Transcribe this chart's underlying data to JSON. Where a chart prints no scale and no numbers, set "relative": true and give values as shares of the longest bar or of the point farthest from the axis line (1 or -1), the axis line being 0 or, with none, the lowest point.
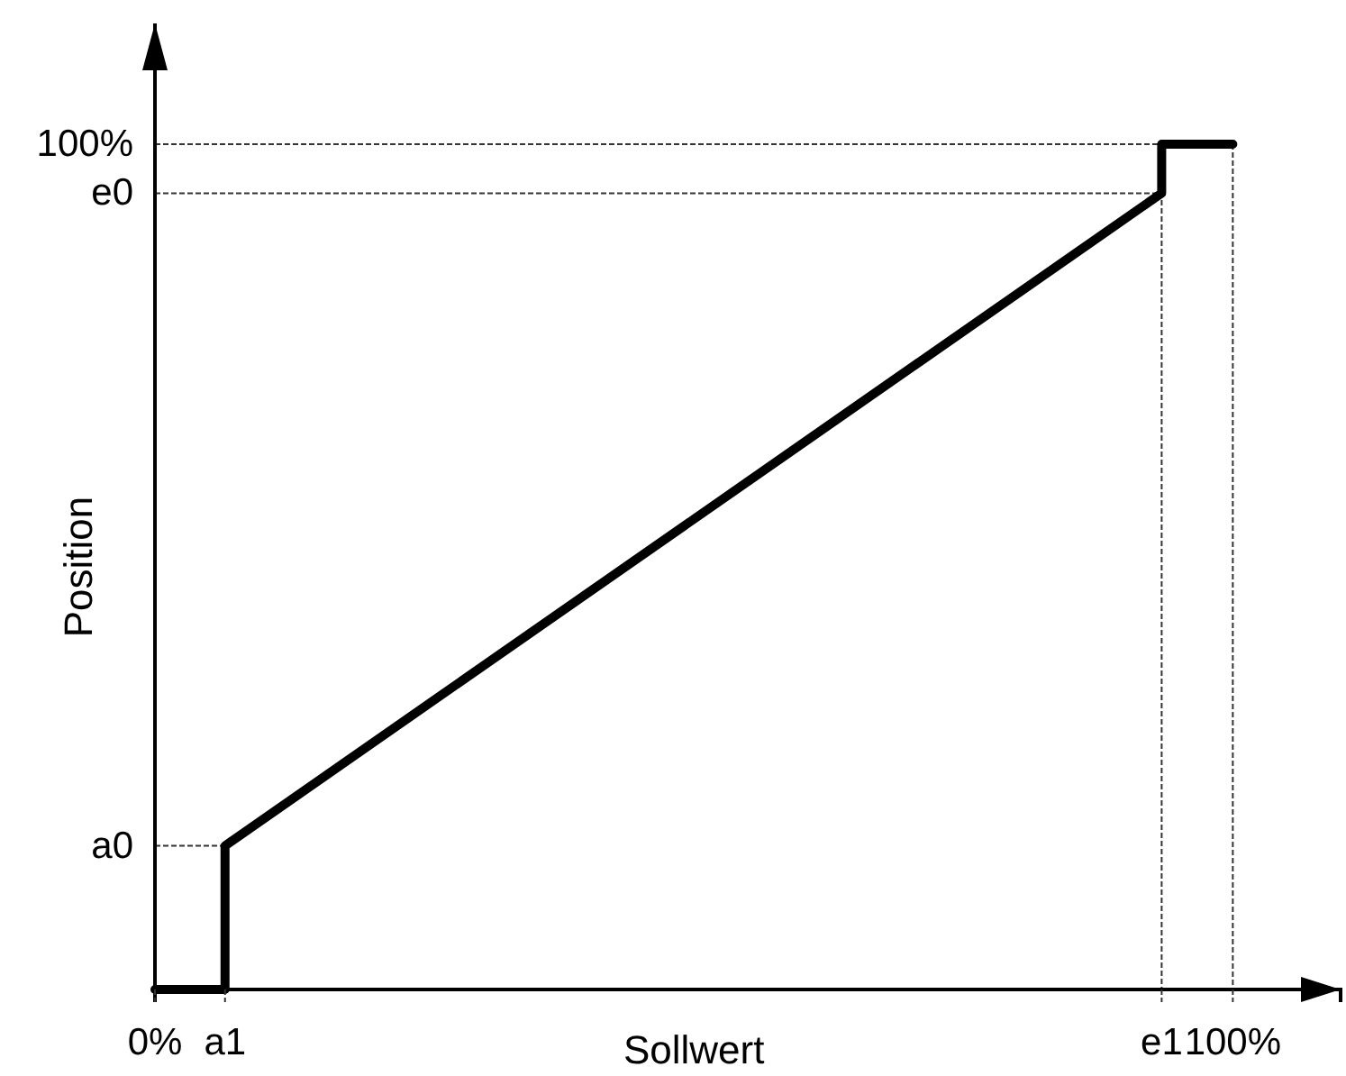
{
  "chart_data": {
    "type": "line",
    "relative": true,
    "xlabel": "Sollwert",
    "ylabel": "Position",
    "xlim": [
      0,
      110
    ],
    "xticks": [
      {
        "value": 0,
        "label": "0%"
      },
      {
        "value": 6.5,
        "label": "a1"
      },
      {
        "value": 93.4,
        "label": "e1"
      },
      {
        "value": 100,
        "label": "100%"
      }
    ],
    "series": [
      {
        "name": "a0",
        "color": "#333333",
        "line_style": "dotted",
        "x": [
          0,
          6.5
        ],
        "values": [
          0.17,
          0.17
        ]
      },
      {
        "name": "e0",
        "color": "#333333",
        "line_style": "dotted",
        "x": [
          0,
          93.4,
          93.4
        ],
        "values": [
          0.942,
          0.942,
          0
        ]
      },
      {
        "name": "100%",
        "color": "#333333",
        "line_style": "dotted",
        "x": [
          0,
          93.4
        ],
        "values": [
          1,
          1
        ]
      },
      {
        "color": "#333333",
        "line_style": "dotted",
        "x": [
          100,
          100
        ],
        "values": [
          1,
          0
        ]
      },
      {
        "color": "#000000",
        "line_style": "solid",
        "x": [
          0,
          6.5,
          6.5,
          93.4,
          93.4,
          100
        ],
        "values": [
          0,
          0,
          0.17,
          0.942,
          1,
          1
        ]
      }
    ]
  }
}
